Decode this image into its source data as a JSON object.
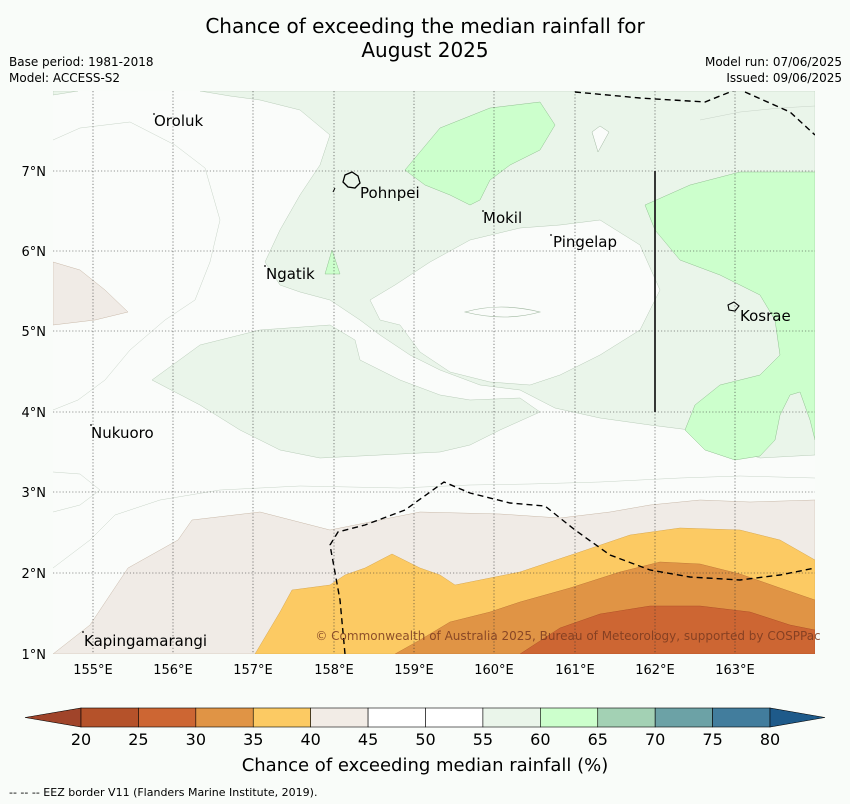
{
  "title": {
    "line1": "Chance of exceeding the median rainfall for",
    "line2": "August 2025"
  },
  "meta": {
    "base_period": "Base period: 1981-2018",
    "model": "Model: ACCESS-S2",
    "model_run": "Model run: 07/06/2025",
    "issued": "Issued: 09/06/2025"
  },
  "map": {
    "lon_ticks": [
      "155°E",
      "156°E",
      "157°E",
      "158°E",
      "159°E",
      "160°E",
      "161°E",
      "162°E",
      "163°E"
    ],
    "lat_ticks": [
      "1°N",
      "2°N",
      "3°N",
      "4°N",
      "5°N",
      "6°N",
      "7°N"
    ],
    "places": [
      "Oroluk",
      "Pohnpei",
      "Mokil",
      "Pingelap",
      "Ngatik",
      "Kosrae",
      "Nukuoro",
      "Kapingamarangi"
    ],
    "copyright": "© Commonwealth of Australia 2025, Bureau of Meteorology, supported by COSPPac"
  },
  "colorbar": {
    "ticks": [
      "20",
      "25",
      "30",
      "35",
      "40",
      "45",
      "50",
      "55",
      "60",
      "65",
      "70",
      "75",
      "80"
    ],
    "colors": [
      "#b5522a",
      "#cd6633",
      "#e09445",
      "#fcca63",
      "#f2ece6",
      "#ffffff",
      "#ffffff",
      "#eaf5ea",
      "#ccffcc",
      "#a3d1b4",
      "#6ca2a6",
      "#427d9d"
    ],
    "under_color": "#a0442a",
    "over_color": "#1e5a8a",
    "label": "Chance of exceeding median rainfall (%)"
  },
  "footnote": "--  --  -- EEZ border V11 (Flanders Marine Institute, 2019)."
}
